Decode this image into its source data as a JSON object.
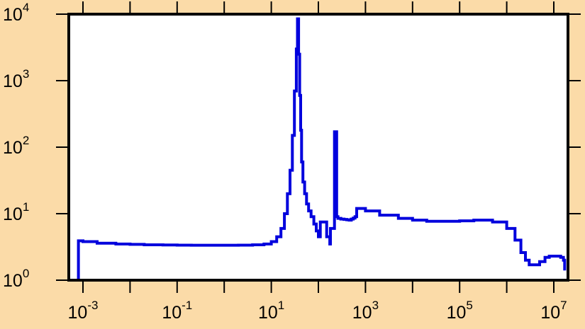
{
  "chart_data": {
    "type": "line",
    "title": "",
    "xlabel": "",
    "ylabel": "",
    "x_scale": "log",
    "y_scale": "log",
    "xlim": [
      0.0005,
      20000000
    ],
    "ylim": [
      1,
      10000
    ],
    "grid": false,
    "legend": "none",
    "x_ticks": [
      {
        "base": "10",
        "exp": "-3",
        "value": 0.001
      },
      {
        "base": "10",
        "exp": "-1",
        "value": 0.1
      },
      {
        "base": "10",
        "exp": "1",
        "value": 10
      },
      {
        "base": "10",
        "exp": "3",
        "value": 1000
      },
      {
        "base": "10",
        "exp": "5",
        "value": 100000
      },
      {
        "base": "10",
        "exp": "7",
        "value": 10000000
      }
    ],
    "y_ticks": [
      {
        "base": "10",
        "exp": "0",
        "value": 1
      },
      {
        "base": "10",
        "exp": "1",
        "value": 10
      },
      {
        "base": "10",
        "exp": "2",
        "value": 100
      },
      {
        "base": "10",
        "exp": "3",
        "value": 1000
      },
      {
        "base": "10",
        "exp": "4",
        "value": 10000
      }
    ],
    "series": [
      {
        "color": "#0000dd",
        "x": [
          0.0008,
          0.0008,
          0.00085,
          0.001,
          0.002,
          0.005,
          0.01,
          0.02,
          0.05,
          0.1,
          0.2,
          0.5,
          1,
          2,
          4,
          7,
          10,
          13,
          16,
          19,
          22,
          25,
          28,
          31,
          34,
          36,
          38,
          40,
          42,
          44,
          47,
          51,
          56,
          62,
          70,
          80,
          90,
          100,
          110,
          120,
          125,
          150,
          175,
          180,
          195,
          210,
          220,
          220,
          245,
          245,
          260,
          300,
          350,
          400,
          450,
          500,
          550,
          600,
          650,
          650,
          1000,
          2000,
          5000,
          10000,
          20000,
          50000,
          100000,
          200000,
          500000,
          1000000,
          1500000,
          2000000,
          2500000,
          3000000,
          4000000,
          5000000,
          6500000,
          8000000,
          10000000,
          12000000,
          14000000,
          16000000,
          17000000,
          17000000
        ],
        "y": [
          1,
          3.9,
          3.9,
          3.8,
          3.6,
          3.5,
          3.45,
          3.4,
          3.38,
          3.36,
          3.35,
          3.35,
          3.35,
          3.36,
          3.4,
          3.5,
          3.8,
          4.5,
          6,
          10,
          20,
          45,
          150,
          700,
          3000,
          8500,
          2500,
          600,
          180,
          60,
          30,
          20,
          14,
          11,
          9,
          7,
          5.5,
          4.5,
          7.5,
          7.5,
          7.5,
          4.5,
          3.5,
          6,
          6,
          6,
          6,
          170,
          170,
          9,
          8.5,
          8.3,
          8.2,
          8.1,
          8,
          8.3,
          8.6,
          9,
          12,
          12,
          11,
          9.5,
          8.5,
          8,
          7.7,
          7.7,
          7.8,
          8,
          7.5,
          6,
          4,
          2.6,
          2,
          1.7,
          1.7,
          1.9,
          2.2,
          2.3,
          2.3,
          2.3,
          2.2,
          2,
          1.7,
          1.4
        ]
      }
    ]
  }
}
